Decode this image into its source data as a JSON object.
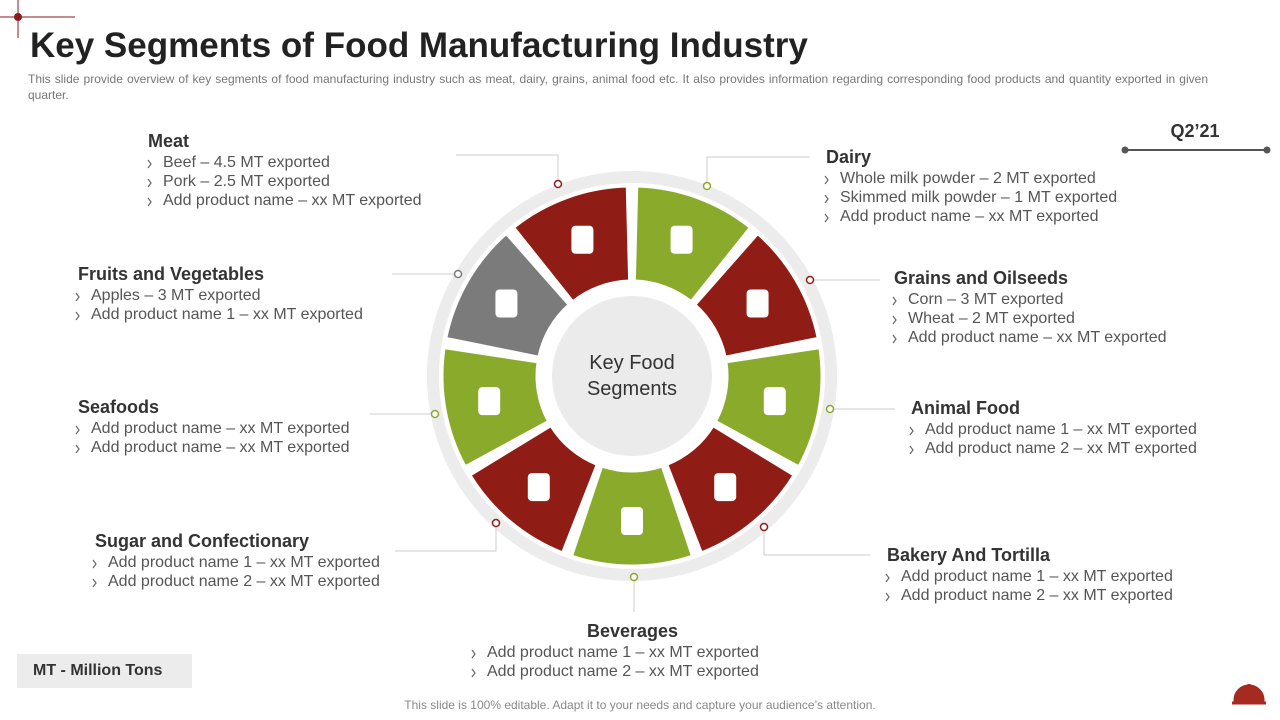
{
  "header": {
    "title": "Key Segments of Food Manufacturing Industry",
    "subtitle": "This slide provide  overview  of key segments of food manufacturing industry such as meat, dairy, grains, animal food etc. It also provides  information  regarding  corresponding  food products and quantity exported in given  quarter."
  },
  "quarter": "Q2’21",
  "center_label": "Key Food Segments",
  "segments": [
    {
      "name": "Dairy",
      "items": [
        "Whole milk powder – 2 MT exported",
        "Skimmed milk powder – 1 MT exported",
        "Add product name – xx MT exported"
      ]
    },
    {
      "name": "Grains and Oilseeds",
      "items": [
        "Corn – 3 MT exported",
        "Wheat – 2 MT exported",
        "Add product name – xx MT exported"
      ]
    },
    {
      "name": "Animal Food",
      "items": [
        "Add product name 1 – xx MT exported",
        "Add product name 2 – xx MT exported"
      ]
    },
    {
      "name": "Bakery And Tortilla",
      "items": [
        "Add product name 1 – xx MT exported",
        "Add product name 2 – xx MT exported"
      ]
    },
    {
      "name": "Beverages",
      "items": [
        "Add product name  1  – xx MT exported",
        "Add product name 2 – xx MT exported"
      ]
    },
    {
      "name": "Sugar and Confectionary",
      "items": [
        "Add product name  1  – xx MT exported",
        "Add product name 2 – xx MT exported"
      ]
    },
    {
      "name": "Seafoods",
      "items": [
        "Add product name – xx MT exported",
        "Add product name – xx MT exported"
      ]
    },
    {
      "name": "Fruits and Vegetables",
      "items": [
        "Apples – 3 MT exported",
        "Add product name 1 – xx MT exported"
      ]
    },
    {
      "name": "Meat",
      "items": [
        "Beef – 4.5 MT exported",
        "Pork – 2.5 MT exported",
        "Add product name – xx MT exported"
      ]
    }
  ],
  "legend_note": "MT - Million Tons",
  "footer_note": "This slide is 100% editable. Adapt it to your needs and capture your audience’s attention."
}
